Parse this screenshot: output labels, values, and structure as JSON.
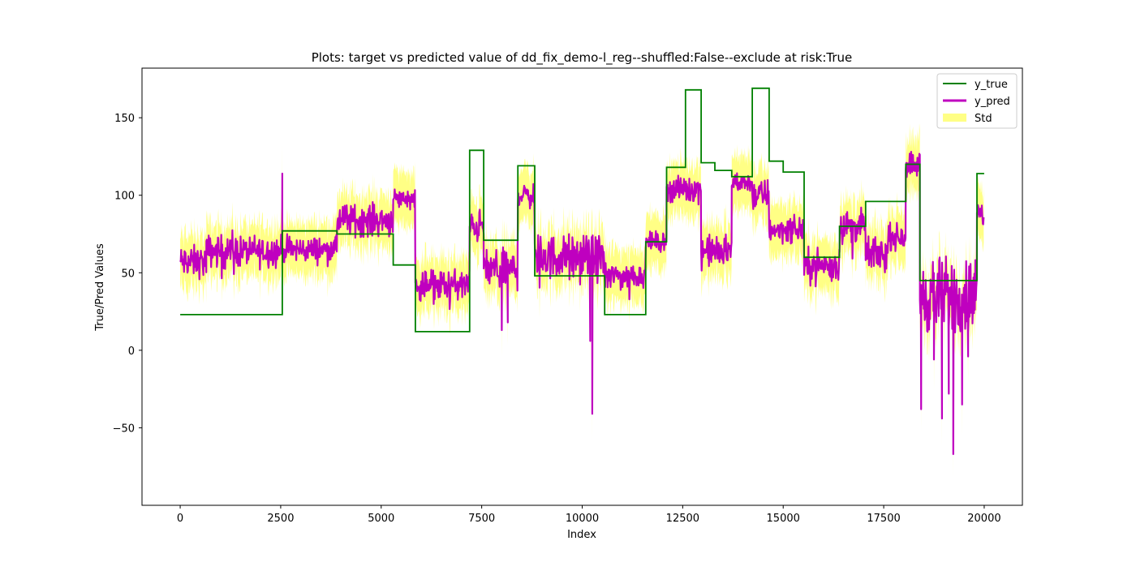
{
  "colors": {
    "y_true": "#008000",
    "y_pred": "#bf00bf",
    "std": "#ffff66"
  },
  "chart_data": {
    "type": "line",
    "title": "Plots: target vs predicted value of dd_fix_demo-l_reg--shuffled:False--exclude at risk:True",
    "xlabel": "Index",
    "ylabel": "True/Pred Values",
    "xlim": [
      -950,
      20950
    ],
    "ylim": [
      -100,
      182
    ],
    "x_ticks": [
      0,
      2500,
      5000,
      7500,
      10000,
      12500,
      15000,
      17500,
      20000
    ],
    "x_tick_labels": [
      "0",
      "2500",
      "5000",
      "7500",
      "10000",
      "12500",
      "15000",
      "17500",
      "20000"
    ],
    "y_ticks": [
      -50,
      0,
      50,
      100,
      150
    ],
    "y_tick_labels": [
      "−50",
      "0",
      "50",
      "100",
      "150"
    ],
    "grid": false,
    "legend_position": "top-right",
    "legend": [
      "y_true",
      "y_pred",
      "Std"
    ],
    "series": [
      {
        "name": "y_true",
        "style": "step",
        "points": [
          [
            0,
            23
          ],
          [
            2540,
            23
          ],
          [
            2540,
            77
          ],
          [
            3900,
            77
          ],
          [
            3900,
            75
          ],
          [
            5300,
            75
          ],
          [
            5300,
            55
          ],
          [
            5850,
            55
          ],
          [
            5850,
            12
          ],
          [
            7200,
            12
          ],
          [
            7200,
            129
          ],
          [
            7550,
            129
          ],
          [
            7550,
            71
          ],
          [
            8400,
            71
          ],
          [
            8400,
            119
          ],
          [
            8820,
            119
          ],
          [
            8820,
            48
          ],
          [
            10560,
            48
          ],
          [
            10560,
            23
          ],
          [
            11580,
            23
          ],
          [
            11580,
            70
          ],
          [
            12100,
            70
          ],
          [
            12100,
            118
          ],
          [
            12570,
            118
          ],
          [
            12570,
            168
          ],
          [
            12960,
            168
          ],
          [
            12960,
            121
          ],
          [
            13300,
            121
          ],
          [
            13300,
            116
          ],
          [
            13720,
            116
          ],
          [
            13720,
            112
          ],
          [
            14230,
            112
          ],
          [
            14230,
            169
          ],
          [
            14650,
            169
          ],
          [
            14650,
            122
          ],
          [
            15000,
            122
          ],
          [
            15000,
            115
          ],
          [
            15520,
            115
          ],
          [
            15520,
            60
          ],
          [
            16400,
            60
          ],
          [
            16400,
            80
          ],
          [
            17050,
            80
          ],
          [
            17050,
            96
          ],
          [
            18050,
            96
          ],
          [
            18050,
            120
          ],
          [
            18400,
            120
          ],
          [
            18400,
            45
          ],
          [
            19820,
            45
          ],
          [
            19820,
            114
          ],
          [
            20000,
            114
          ]
        ]
      },
      {
        "name": "y_pred",
        "segments": [
          {
            "x0": 0,
            "x1": 650,
            "mean": 57,
            "noise": 5
          },
          {
            "x0": 650,
            "x1": 2540,
            "mean": 64,
            "noise": 5
          },
          {
            "x0": 2540,
            "x1": 3900,
            "mean": 65,
            "noise": 4
          },
          {
            "x0": 3900,
            "x1": 5300,
            "mean": 84,
            "noise": 5
          },
          {
            "x0": 5300,
            "x1": 5850,
            "mean": 98,
            "noise": 3
          },
          {
            "x0": 5850,
            "x1": 7200,
            "mean": 42,
            "noise": 5
          },
          {
            "x0": 7200,
            "x1": 7550,
            "mean": 80,
            "noise": 5
          },
          {
            "x0": 7550,
            "x1": 8400,
            "mean": 52,
            "noise": 6
          },
          {
            "x0": 8400,
            "x1": 8820,
            "mean": 100,
            "noise": 4
          },
          {
            "x0": 8820,
            "x1": 10560,
            "mean": 60,
            "noise": 7
          },
          {
            "x0": 10560,
            "x1": 11580,
            "mean": 48,
            "noise": 4
          },
          {
            "x0": 11580,
            "x1": 12100,
            "mean": 70,
            "noise": 3
          },
          {
            "x0": 12100,
            "x1": 12960,
            "mean": 104,
            "noise": 4
          },
          {
            "x0": 12960,
            "x1": 13720,
            "mean": 64,
            "noise": 5
          },
          {
            "x0": 13720,
            "x1": 14230,
            "mean": 108,
            "noise": 3
          },
          {
            "x0": 14230,
            "x1": 14650,
            "mean": 100,
            "noise": 5
          },
          {
            "x0": 14650,
            "x1": 15520,
            "mean": 78,
            "noise": 4
          },
          {
            "x0": 15520,
            "x1": 16400,
            "mean": 55,
            "noise": 5
          },
          {
            "x0": 16400,
            "x1": 17050,
            "mean": 80,
            "noise": 5
          },
          {
            "x0": 17050,
            "x1": 17600,
            "mean": 62,
            "noise": 5
          },
          {
            "x0": 17600,
            "x1": 18050,
            "mean": 73,
            "noise": 4
          },
          {
            "x0": 18050,
            "x1": 18400,
            "mean": 120,
            "noise": 4
          },
          {
            "x0": 18400,
            "x1": 19820,
            "mean": 35,
            "noise": 12
          },
          {
            "x0": 19820,
            "x1": 20000,
            "mean": 88,
            "noise": 4
          }
        ],
        "spikes": [
          [
            2540,
            114
          ],
          [
            8000,
            13
          ],
          [
            8150,
            18
          ],
          [
            10200,
            6
          ],
          [
            10250,
            -41
          ],
          [
            18430,
            -38
          ],
          [
            18950,
            -44
          ],
          [
            19230,
            -67
          ],
          [
            19450,
            -35
          ],
          [
            19120,
            -28
          ],
          [
            18750,
            -6
          ],
          [
            19600,
            -4
          ]
        ]
      },
      {
        "name": "Std",
        "band_half_width": 14
      }
    ]
  }
}
